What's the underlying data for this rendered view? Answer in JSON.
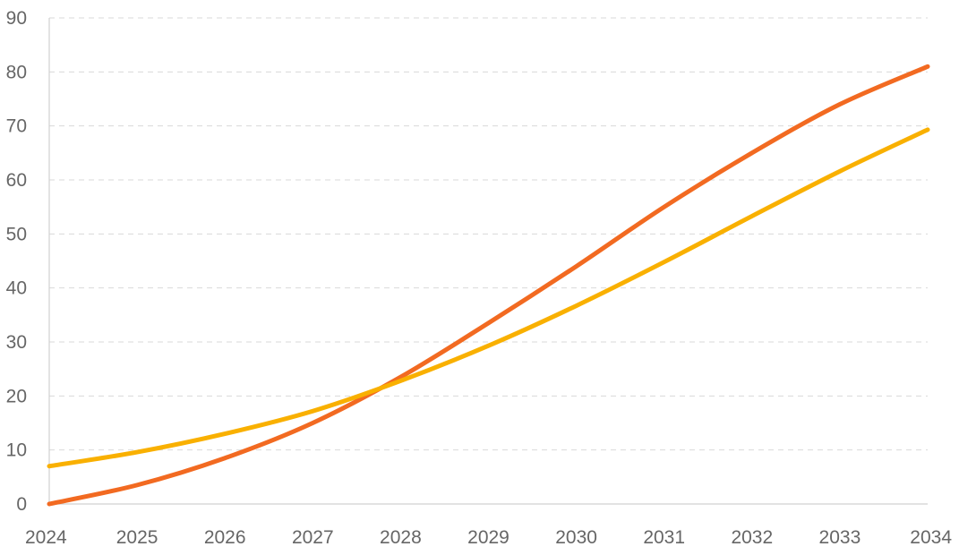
{
  "chart_data": {
    "type": "line",
    "title": "",
    "xlabel": "",
    "ylabel": "",
    "x": [
      2024,
      2025,
      2026,
      2027,
      2028,
      2029,
      2030,
      2031,
      2032,
      2033,
      2034
    ],
    "x_tick_labels": [
      "2024",
      "2025",
      "2026",
      "2027",
      "2028",
      "2029",
      "2030",
      "2031",
      "2032",
      "2033",
      "2034"
    ],
    "y_ticks": [
      0,
      10,
      20,
      30,
      40,
      50,
      60,
      70,
      80,
      90
    ],
    "y_tick_labels": [
      "0",
      "10",
      "20",
      "30",
      "40",
      "50",
      "60",
      "70",
      "80",
      "90"
    ],
    "xlim": [
      2024,
      2034
    ],
    "ylim": [
      0,
      90
    ],
    "grid": "horizontal dashed",
    "legend": "none",
    "series": [
      {
        "color": "#F26A21",
        "values": [
          0,
          3.5,
          8.5,
          15,
          23.5,
          33.5,
          44,
          55,
          65,
          74,
          81
        ]
      },
      {
        "color": "#F9B000",
        "values": [
          7,
          9.6,
          13,
          17.2,
          22.8,
          29.3,
          36.7,
          44.8,
          53.3,
          61.6,
          69.3
        ]
      }
    ]
  }
}
